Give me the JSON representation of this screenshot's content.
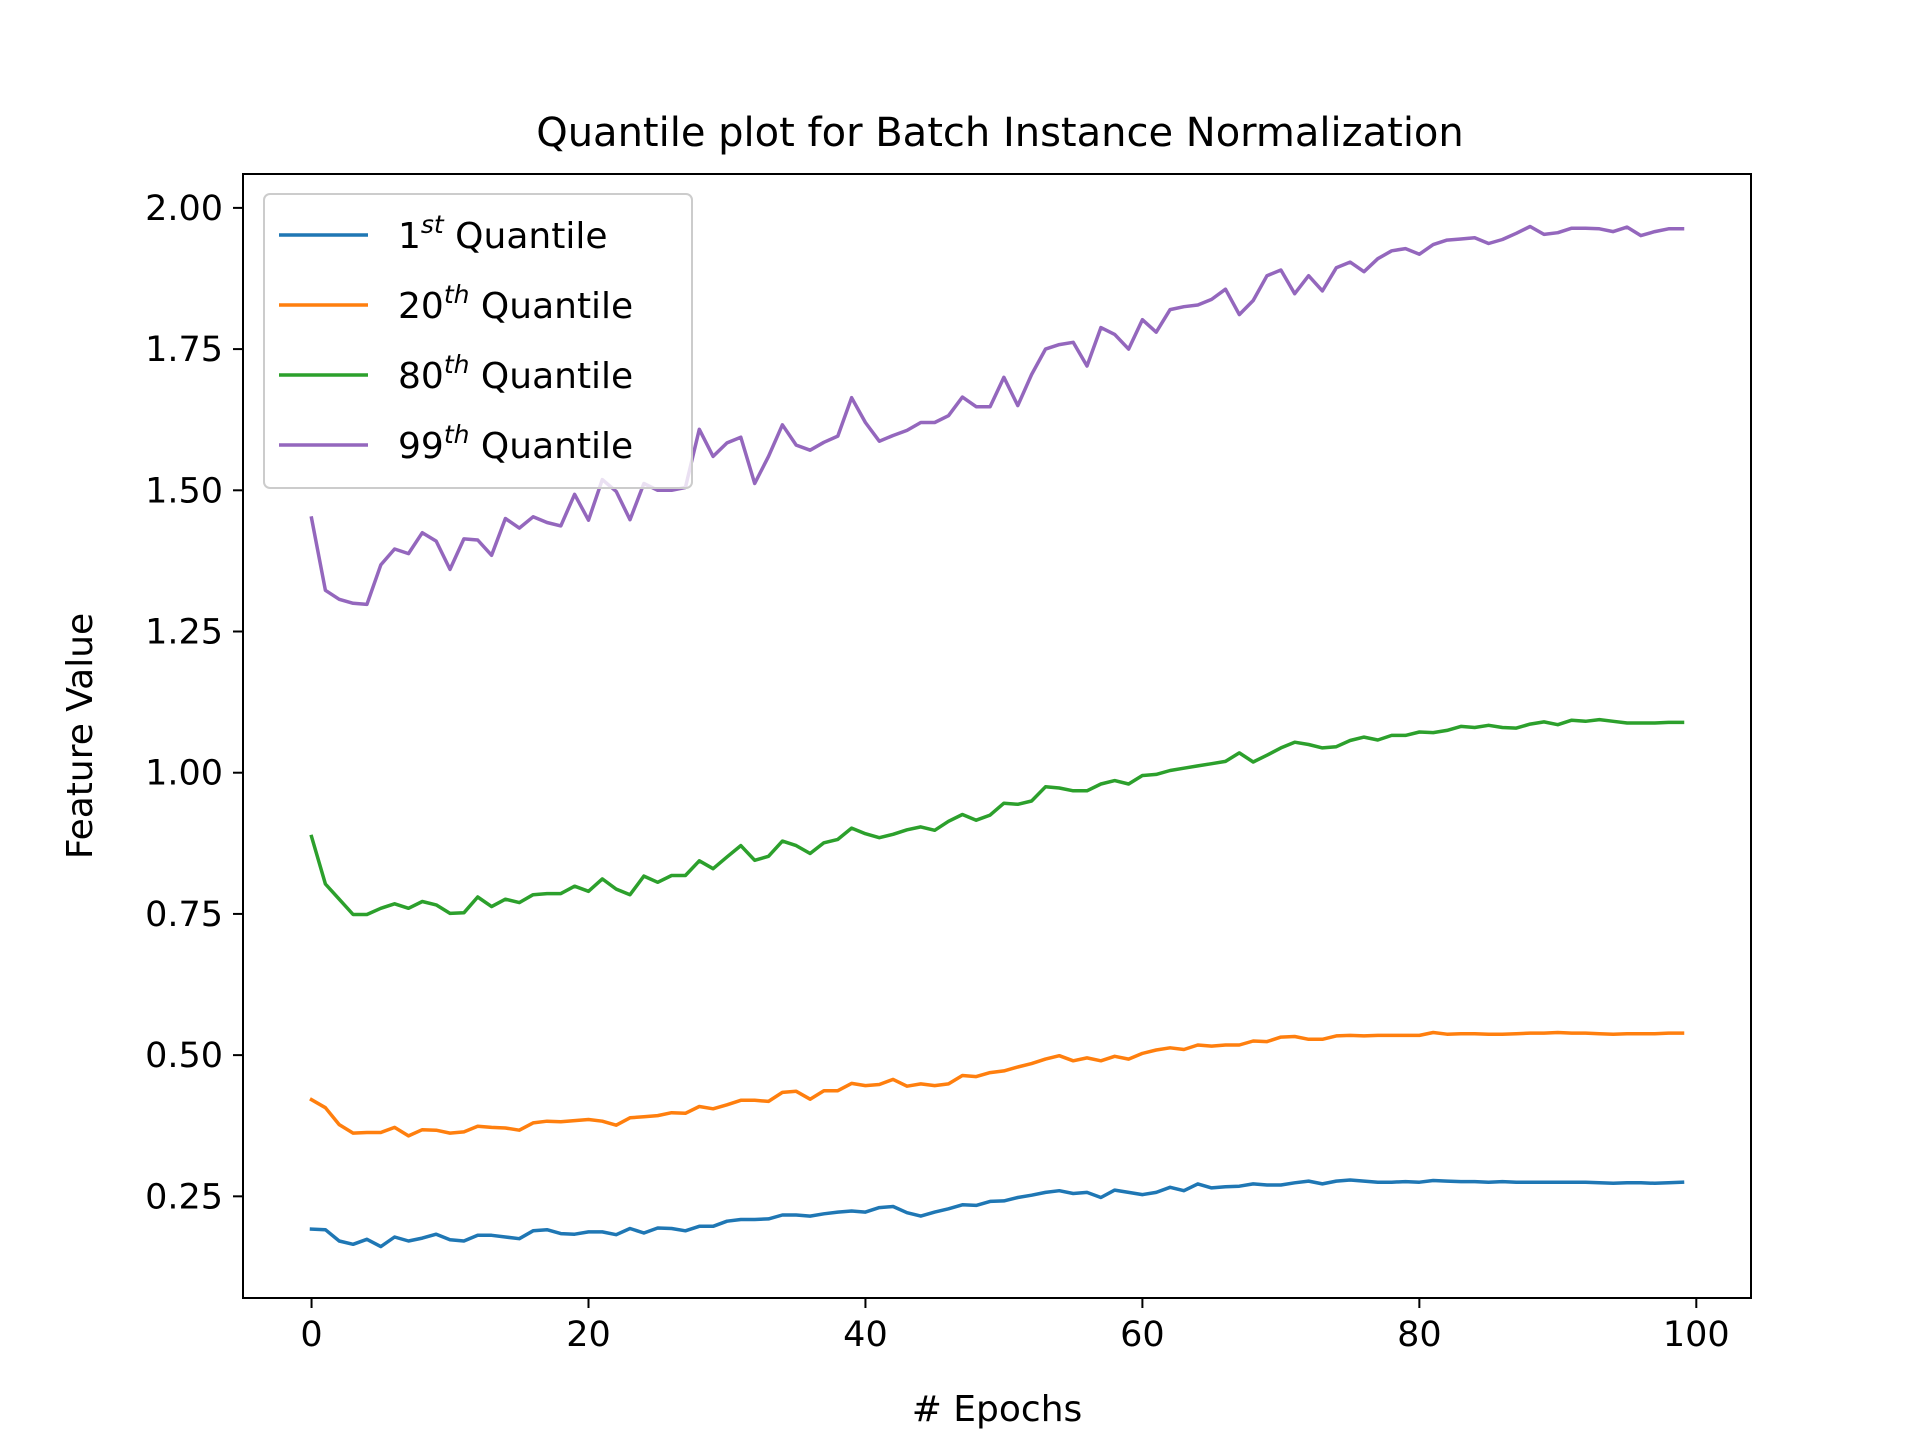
{
  "chart_data": {
    "type": "line",
    "title": "Quantile plot for Batch Instance Normalization",
    "xlabel": "# Epochs",
    "ylabel": "Feature Value",
    "xlim": [
      -4.95,
      103.95
    ],
    "ylim": [
      0.07,
      2.06
    ],
    "xticks": [
      0,
      20,
      40,
      60,
      80,
      100
    ],
    "xtick_labels": [
      "0",
      "20",
      "40",
      "60",
      "80",
      "100"
    ],
    "yticks": [
      0.25,
      0.5,
      0.75,
      1.0,
      1.25,
      1.5,
      1.75,
      2.0
    ],
    "ytick_labels": [
      "0.25",
      "0.50",
      "0.75",
      "1.00",
      "1.25",
      "1.50",
      "1.75",
      "2.00"
    ],
    "grid": false,
    "legend_position": "top-left",
    "series": [
      {
        "name": "1st Quantile",
        "label_base": "1",
        "label_sup": "st",
        "label_rest": " Quantile",
        "color": "#1f77b4",
        "x": [
          0,
          1,
          2,
          3,
          4,
          5,
          6,
          7,
          8,
          9,
          10,
          11,
          12,
          13,
          14,
          15,
          16,
          17,
          18,
          19,
          20,
          21,
          22,
          23,
          24,
          25,
          26,
          27,
          28,
          29,
          30,
          31,
          32,
          33,
          34,
          35,
          36,
          37,
          38,
          39,
          40,
          41,
          42,
          43,
          44,
          45,
          46,
          47,
          48,
          49,
          50,
          51,
          52,
          53,
          54,
          55,
          56,
          57,
          58,
          59,
          60,
          61,
          62,
          63,
          64,
          65,
          66,
          67,
          68,
          69,
          70,
          71,
          72,
          73,
          74,
          75,
          76,
          77,
          78,
          79,
          80,
          81,
          82,
          83,
          84,
          85,
          86,
          87,
          88,
          89,
          90,
          91,
          92,
          93,
          94,
          95,
          96,
          97,
          98,
          99
        ],
        "y": [
          0.192,
          0.191,
          0.171,
          0.165,
          0.174,
          0.161,
          0.178,
          0.171,
          0.176,
          0.183,
          0.173,
          0.171,
          0.181,
          0.181,
          0.178,
          0.175,
          0.189,
          0.191,
          0.184,
          0.183,
          0.187,
          0.187,
          0.182,
          0.193,
          0.185,
          0.194,
          0.193,
          0.189,
          0.197,
          0.197,
          0.206,
          0.209,
          0.209,
          0.21,
          0.217,
          0.217,
          0.215,
          0.219,
          0.222,
          0.224,
          0.222,
          0.23,
          0.232,
          0.221,
          0.215,
          0.222,
          0.228,
          0.235,
          0.234,
          0.241,
          0.242,
          0.248,
          0.252,
          0.257,
          0.26,
          0.255,
          0.257,
          0.248,
          0.261,
          0.257,
          0.253,
          0.257,
          0.266,
          0.26,
          0.272,
          0.265,
          0.267,
          0.268,
          0.272,
          0.27,
          0.27,
          0.274,
          0.277,
          0.272,
          0.277,
          0.279,
          0.277,
          0.275,
          0.275,
          0.276,
          0.275,
          0.278,
          0.277,
          0.276,
          0.276,
          0.275,
          0.276,
          0.275,
          0.275,
          0.275,
          0.275,
          0.275,
          0.275,
          0.274,
          0.273,
          0.274,
          0.274,
          0.273,
          0.274,
          0.275
        ]
      },
      {
        "name": "20th Quantile",
        "label_base": "20",
        "label_sup": "th",
        "label_rest": " Quantile",
        "color": "#ff7f0e",
        "x": [
          0,
          1,
          2,
          3,
          4,
          5,
          6,
          7,
          8,
          9,
          10,
          11,
          12,
          13,
          14,
          15,
          16,
          17,
          18,
          19,
          20,
          21,
          22,
          23,
          24,
          25,
          26,
          27,
          28,
          29,
          30,
          31,
          32,
          33,
          34,
          35,
          36,
          37,
          38,
          39,
          40,
          41,
          42,
          43,
          44,
          45,
          46,
          47,
          48,
          49,
          50,
          51,
          52,
          53,
          54,
          55,
          56,
          57,
          58,
          59,
          60,
          61,
          62,
          63,
          64,
          65,
          66,
          67,
          68,
          69,
          70,
          71,
          72,
          73,
          74,
          75,
          76,
          77,
          78,
          79,
          80,
          81,
          82,
          83,
          84,
          85,
          86,
          87,
          88,
          89,
          90,
          91,
          92,
          93,
          94,
          95,
          96,
          97,
          98,
          99
        ],
        "y": [
          0.421,
          0.407,
          0.377,
          0.362,
          0.363,
          0.363,
          0.372,
          0.357,
          0.368,
          0.367,
          0.362,
          0.364,
          0.374,
          0.372,
          0.371,
          0.367,
          0.38,
          0.383,
          0.382,
          0.384,
          0.386,
          0.383,
          0.376,
          0.389,
          0.391,
          0.393,
          0.398,
          0.397,
          0.409,
          0.405,
          0.412,
          0.42,
          0.42,
          0.418,
          0.434,
          0.436,
          0.422,
          0.437,
          0.437,
          0.45,
          0.446,
          0.448,
          0.457,
          0.445,
          0.449,
          0.446,
          0.449,
          0.464,
          0.462,
          0.469,
          0.472,
          0.479,
          0.485,
          0.493,
          0.499,
          0.49,
          0.495,
          0.49,
          0.498,
          0.493,
          0.503,
          0.509,
          0.513,
          0.51,
          0.518,
          0.516,
          0.518,
          0.518,
          0.525,
          0.524,
          0.532,
          0.533,
          0.528,
          0.528,
          0.534,
          0.535,
          0.534,
          0.535,
          0.535,
          0.535,
          0.535,
          0.54,
          0.537,
          0.538,
          0.538,
          0.537,
          0.537,
          0.538,
          0.539,
          0.539,
          0.54,
          0.539,
          0.539,
          0.538,
          0.537,
          0.538,
          0.538,
          0.538,
          0.539,
          0.539
        ]
      },
      {
        "name": "80th Quantile",
        "label_base": "80",
        "label_sup": "th",
        "label_rest": " Quantile",
        "color": "#2ca02c",
        "x": [
          0,
          1,
          2,
          3,
          4,
          5,
          6,
          7,
          8,
          9,
          10,
          11,
          12,
          13,
          14,
          15,
          16,
          17,
          18,
          19,
          20,
          21,
          22,
          23,
          24,
          25,
          26,
          27,
          28,
          29,
          30,
          31,
          32,
          33,
          34,
          35,
          36,
          37,
          38,
          39,
          40,
          41,
          42,
          43,
          44,
          45,
          46,
          47,
          48,
          49,
          50,
          51,
          52,
          53,
          54,
          55,
          56,
          57,
          58,
          59,
          60,
          61,
          62,
          63,
          64,
          65,
          66,
          67,
          68,
          69,
          70,
          71,
          72,
          73,
          74,
          75,
          76,
          77,
          78,
          79,
          80,
          81,
          82,
          83,
          84,
          85,
          86,
          87,
          88,
          89,
          90,
          91,
          92,
          93,
          94,
          95,
          96,
          97,
          98,
          99
        ],
        "y": [
          0.887,
          0.803,
          0.776,
          0.749,
          0.749,
          0.76,
          0.768,
          0.76,
          0.772,
          0.766,
          0.751,
          0.752,
          0.78,
          0.763,
          0.776,
          0.77,
          0.784,
          0.786,
          0.786,
          0.799,
          0.79,
          0.812,
          0.794,
          0.784,
          0.817,
          0.806,
          0.818,
          0.818,
          0.844,
          0.83,
          0.851,
          0.871,
          0.845,
          0.852,
          0.879,
          0.871,
          0.857,
          0.876,
          0.882,
          0.902,
          0.892,
          0.885,
          0.891,
          0.899,
          0.904,
          0.898,
          0.914,
          0.926,
          0.916,
          0.925,
          0.946,
          0.944,
          0.95,
          0.975,
          0.973,
          0.968,
          0.968,
          0.98,
          0.986,
          0.98,
          0.995,
          0.997,
          1.004,
          1.008,
          1.012,
          1.016,
          1.02,
          1.035,
          1.019,
          1.031,
          1.044,
          1.054,
          1.05,
          1.044,
          1.046,
          1.057,
          1.063,
          1.058,
          1.066,
          1.066,
          1.072,
          1.071,
          1.075,
          1.082,
          1.08,
          1.084,
          1.08,
          1.079,
          1.086,
          1.09,
          1.085,
          1.093,
          1.091,
          1.094,
          1.091,
          1.088,
          1.088,
          1.088,
          1.089,
          1.089
        ]
      },
      {
        "name": "99th Quantile",
        "label_base": "99",
        "label_sup": "th",
        "label_rest": " Quantile",
        "color": "#9467bd",
        "x": [
          0,
          1,
          2,
          3,
          4,
          5,
          6,
          7,
          8,
          9,
          10,
          11,
          12,
          13,
          14,
          15,
          16,
          17,
          18,
          19,
          20,
          21,
          22,
          23,
          24,
          25,
          26,
          27,
          28,
          29,
          30,
          31,
          32,
          33,
          34,
          35,
          36,
          37,
          38,
          39,
          40,
          41,
          42,
          43,
          44,
          45,
          46,
          47,
          48,
          49,
          50,
          51,
          52,
          53,
          54,
          55,
          56,
          57,
          58,
          59,
          60,
          61,
          62,
          63,
          64,
          65,
          66,
          67,
          68,
          69,
          70,
          71,
          72,
          73,
          74,
          75,
          76,
          77,
          78,
          79,
          80,
          81,
          82,
          83,
          84,
          85,
          86,
          87,
          88,
          89,
          90,
          91,
          92,
          93,
          94,
          95,
          96,
          97,
          98,
          99
        ],
        "y": [
          1.451,
          1.323,
          1.307,
          1.3,
          1.298,
          1.368,
          1.396,
          1.388,
          1.425,
          1.41,
          1.36,
          1.414,
          1.412,
          1.385,
          1.45,
          1.433,
          1.453,
          1.443,
          1.437,
          1.493,
          1.447,
          1.519,
          1.498,
          1.448,
          1.512,
          1.5,
          1.5,
          1.505,
          1.608,
          1.56,
          1.584,
          1.594,
          1.512,
          1.56,
          1.616,
          1.58,
          1.571,
          1.585,
          1.596,
          1.664,
          1.62,
          1.587,
          1.597,
          1.606,
          1.62,
          1.62,
          1.632,
          1.665,
          1.648,
          1.648,
          1.7,
          1.65,
          1.705,
          1.75,
          1.758,
          1.762,
          1.72,
          1.788,
          1.776,
          1.75,
          1.802,
          1.78,
          1.82,
          1.825,
          1.828,
          1.838,
          1.856,
          1.811,
          1.836,
          1.88,
          1.89,
          1.848,
          1.88,
          1.853,
          1.894,
          1.904,
          1.887,
          1.91,
          1.924,
          1.928,
          1.918,
          1.935,
          1.943,
          1.945,
          1.947,
          1.937,
          1.944,
          1.955,
          1.967,
          1.953,
          1.956,
          1.964,
          1.964,
          1.963,
          1.958,
          1.966,
          1.951,
          1.958,
          1.963,
          1.963
        ]
      }
    ]
  }
}
